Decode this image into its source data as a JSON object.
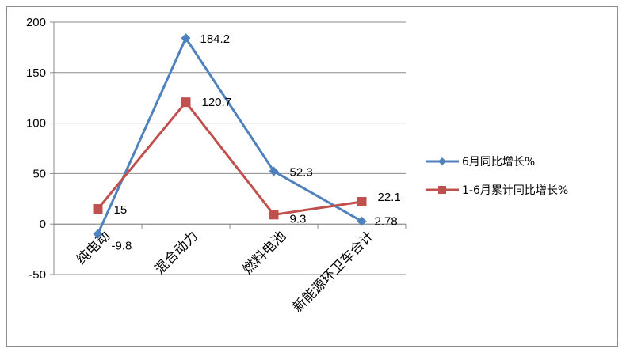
{
  "chart_data": {
    "type": "line",
    "categories": [
      "纯电动",
      "混合动力",
      "燃料电池",
      "新能源环卫车合计"
    ],
    "series": [
      {
        "name": "6月同比增长%",
        "values": [
          -9.8,
          184.2,
          52.3,
          2.78
        ],
        "labels": [
          "-9.8",
          "184.2",
          "52.3",
          "2.78"
        ],
        "color": "#4f81bd",
        "marker": "diamond"
      },
      {
        "name": "1-6月累计同比增长%",
        "values": [
          15,
          120.7,
          9.3,
          22.1
        ],
        "labels": [
          "15",
          "120.7",
          "9.3",
          "22.1"
        ],
        "color": "#c0504d",
        "marker": "square"
      }
    ],
    "yticks": [
      "200",
      "150",
      "100",
      "50",
      "0",
      "-50"
    ],
    "ylim": [
      -50,
      200
    ],
    "grid": true,
    "legend_position": "right"
  }
}
